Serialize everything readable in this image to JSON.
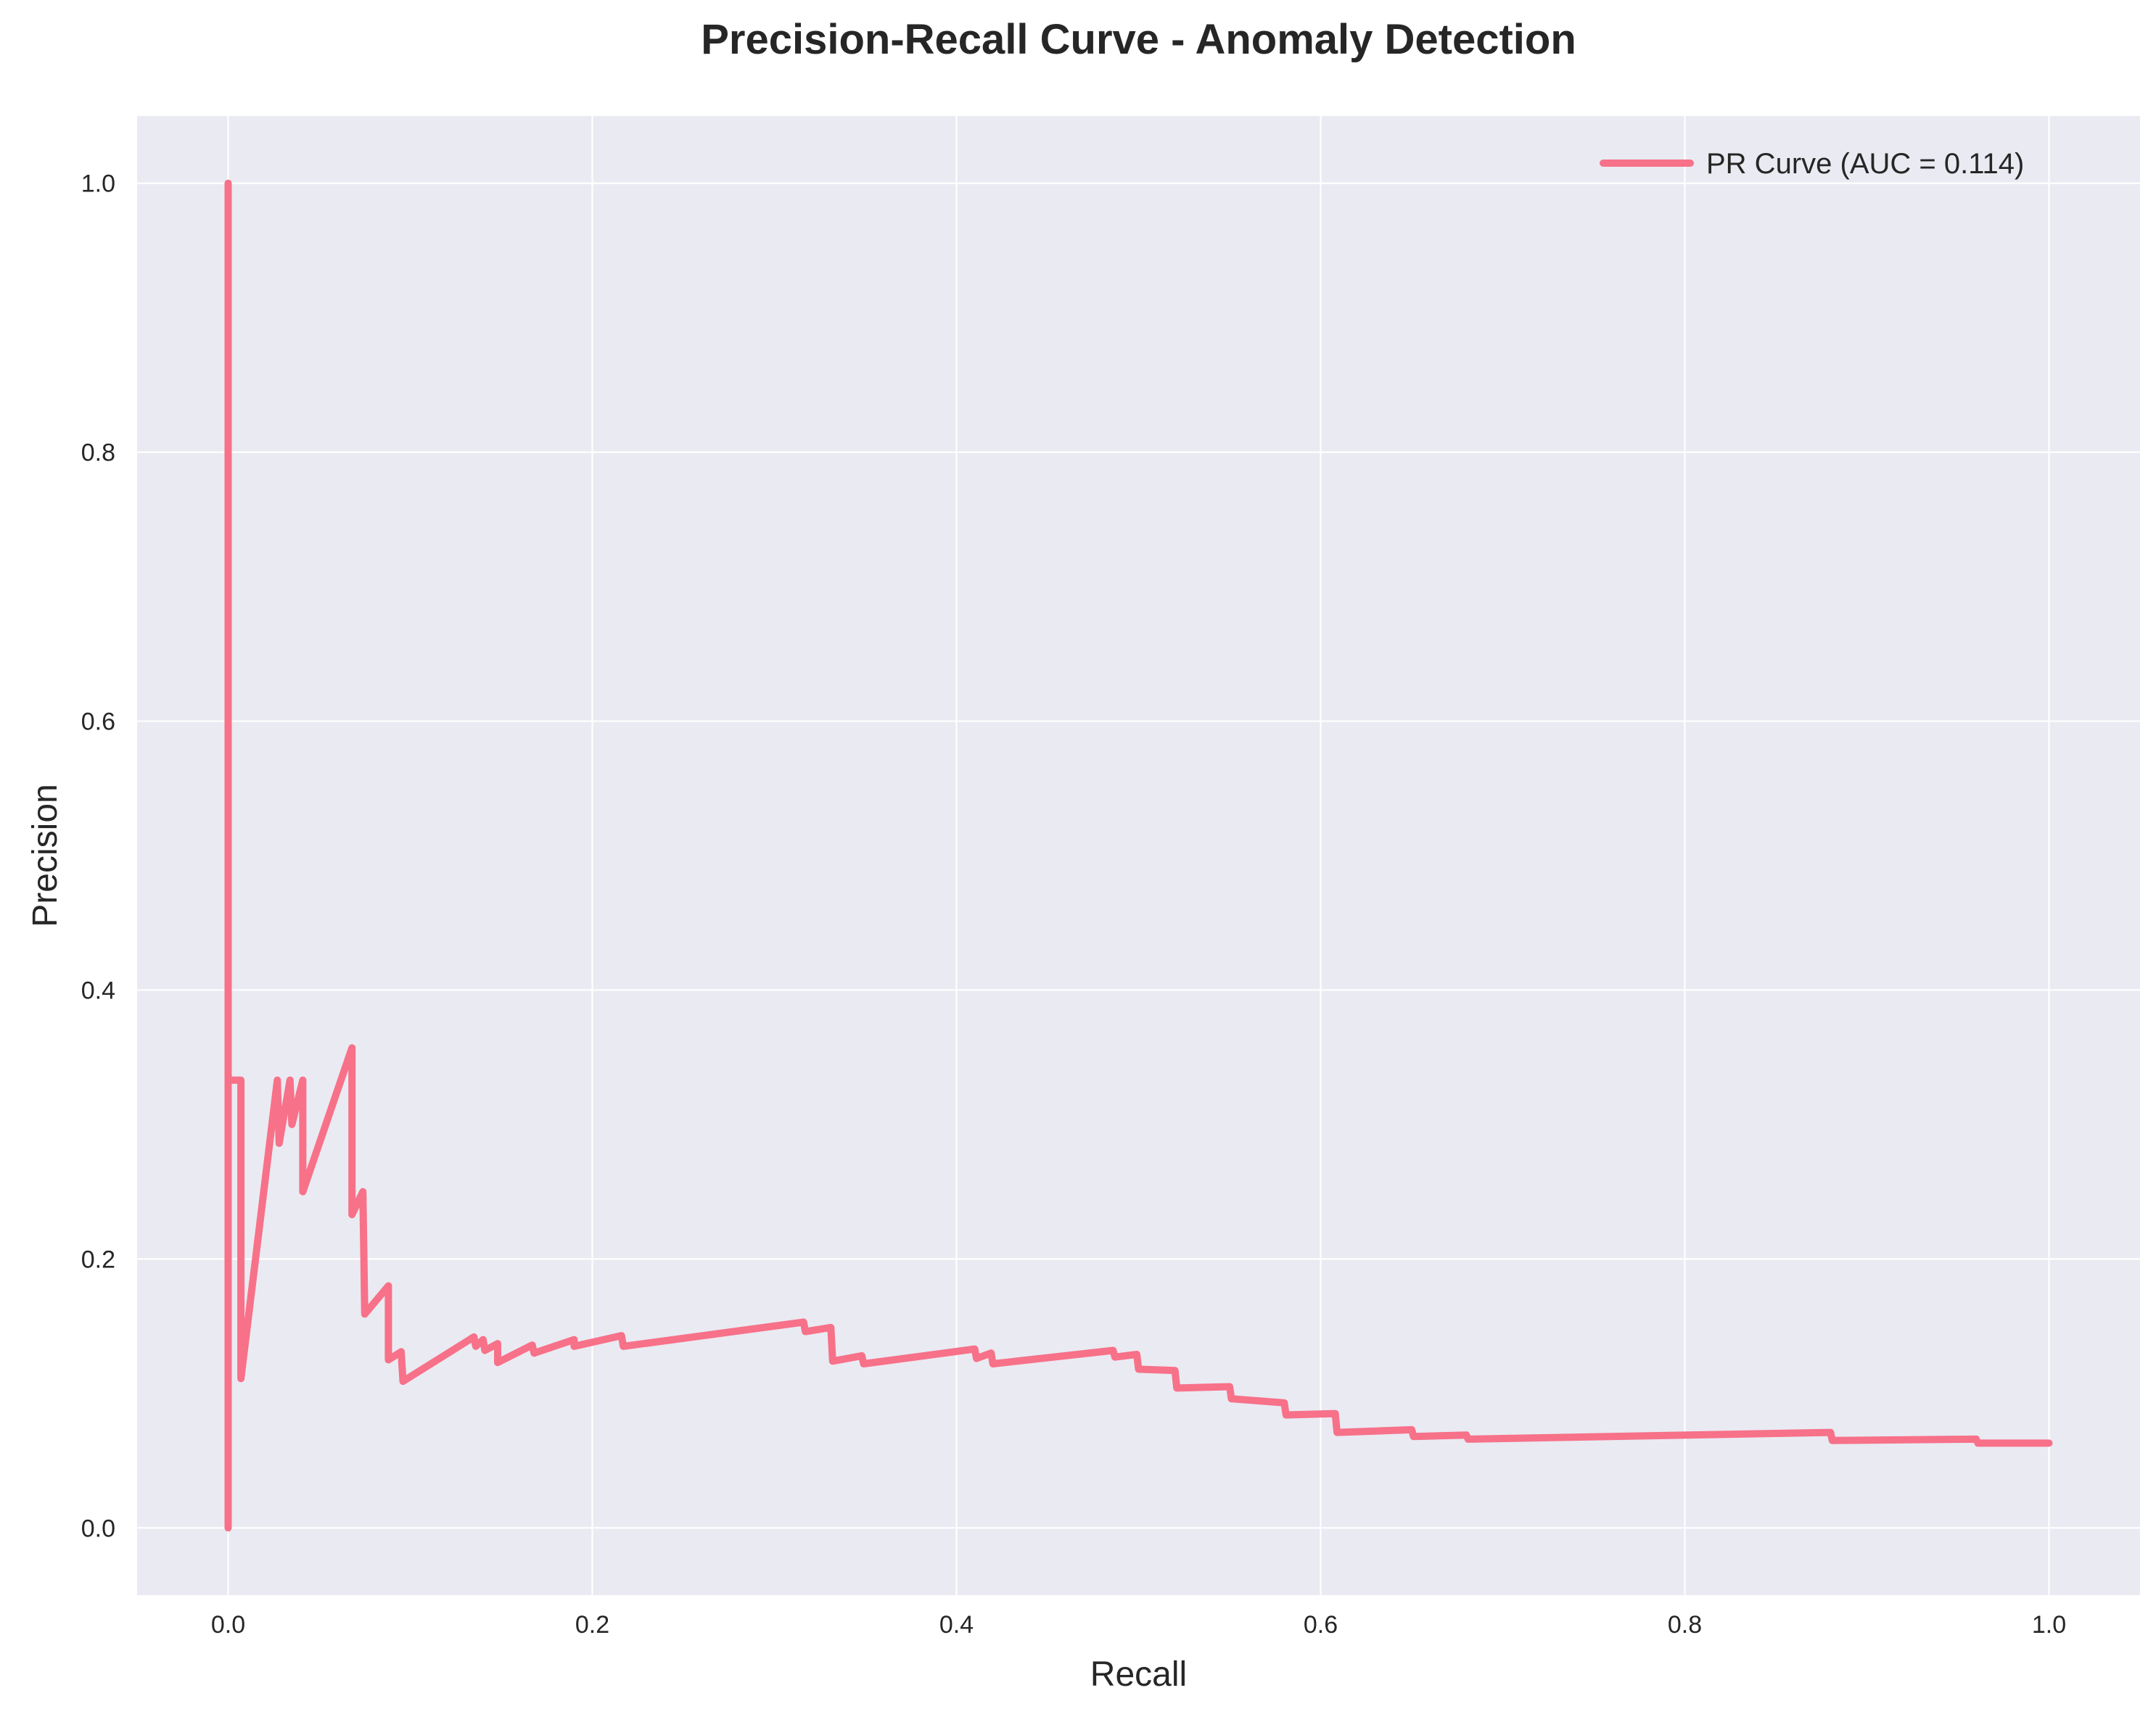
{
  "chart_data": {
    "type": "line",
    "title": "Precision-Recall Curve - Anomaly Detection",
    "xlabel": "Recall",
    "ylabel": "Precision",
    "xlim": [
      -0.05,
      1.05
    ],
    "ylim": [
      -0.05,
      1.05
    ],
    "x_ticks": [
      "0.0",
      "0.2",
      "0.4",
      "0.6",
      "0.8",
      "1.0"
    ],
    "y_ticks": [
      "0.0",
      "0.2",
      "0.4",
      "0.6",
      "0.8",
      "1.0"
    ],
    "grid": true,
    "legend_position": "top-right",
    "colors": {
      "background": "#EAEAF2",
      "grid": "#FFFFFF",
      "line": "#F77189"
    },
    "series": [
      {
        "name": "PR Curve (AUC = 0.114)",
        "x": [
          0.0,
          0.0,
          0.0,
          0.007,
          0.007,
          0.027,
          0.028,
          0.034,
          0.035,
          0.041,
          0.041,
          0.068,
          0.068,
          0.074,
          0.075,
          0.088,
          0.088,
          0.095,
          0.096,
          0.135,
          0.136,
          0.14,
          0.141,
          0.148,
          0.148,
          0.167,
          0.168,
          0.19,
          0.19,
          0.216,
          0.217,
          0.316,
          0.317,
          0.331,
          0.332,
          0.348,
          0.349,
          0.41,
          0.411,
          0.419,
          0.42,
          0.486,
          0.487,
          0.499,
          0.5,
          0.52,
          0.521,
          0.55,
          0.551,
          0.58,
          0.581,
          0.608,
          0.609,
          0.65,
          0.651,
          0.68,
          0.681,
          0.88,
          0.881,
          0.96,
          0.961,
          1.0
        ],
        "y": [
          1.0,
          0.0,
          0.333,
          0.333,
          0.111,
          0.333,
          0.286,
          0.333,
          0.3,
          0.333,
          0.25,
          0.357,
          0.233,
          0.25,
          0.159,
          0.18,
          0.125,
          0.131,
          0.109,
          0.142,
          0.135,
          0.14,
          0.132,
          0.137,
          0.123,
          0.136,
          0.13,
          0.14,
          0.135,
          0.143,
          0.135,
          0.153,
          0.146,
          0.149,
          0.124,
          0.128,
          0.122,
          0.133,
          0.126,
          0.13,
          0.122,
          0.132,
          0.127,
          0.129,
          0.118,
          0.117,
          0.104,
          0.105,
          0.096,
          0.093,
          0.084,
          0.085,
          0.071,
          0.073,
          0.068,
          0.069,
          0.066,
          0.071,
          0.065,
          0.066,
          0.063,
          0.063
        ]
      }
    ]
  }
}
